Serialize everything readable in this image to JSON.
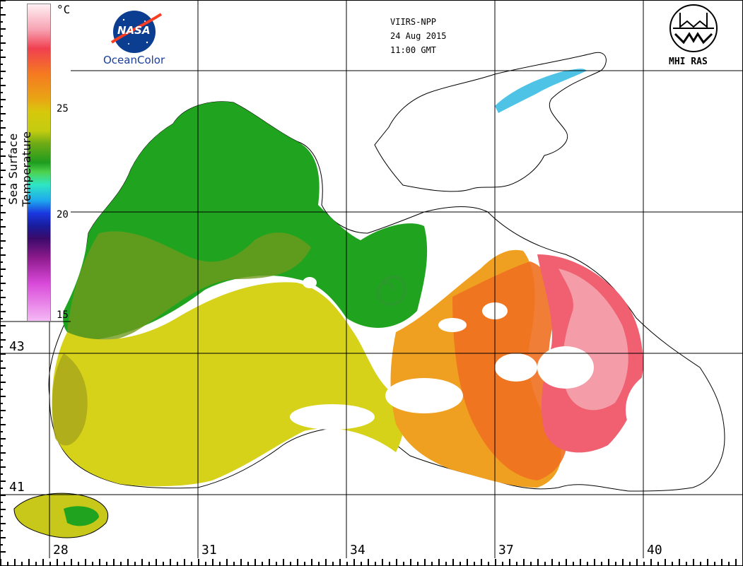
{
  "satellite": {
    "sensor": "VIIRS-NPP",
    "date": "24 Aug 2015",
    "time": "11:00 GMT"
  },
  "logos": {
    "nasa": {
      "mark": "NASA",
      "caption": "OceanColor"
    },
    "mhi": {
      "caption": "MHI RAS"
    }
  },
  "colorbar": {
    "title": "Sea Surface Temperature",
    "unit": "°C",
    "ticks": [
      "25",
      "20",
      "15"
    ],
    "range": [
      15,
      30
    ]
  },
  "grid": {
    "latitudes": [
      "43",
      "41"
    ],
    "longitudes": [
      "28",
      "31",
      "34",
      "37",
      "40"
    ]
  },
  "regions": {
    "west_shelf": {
      "color": "#20a420",
      "approx_temp_c": 24
    },
    "central_west": {
      "color": "#d6d21a",
      "approx_temp_c": 26
    },
    "south_coast": {
      "color": "#f0a020",
      "approx_temp_c": 27
    },
    "east": {
      "color": "#f06070",
      "approx_temp_c": 28.5
    }
  }
}
